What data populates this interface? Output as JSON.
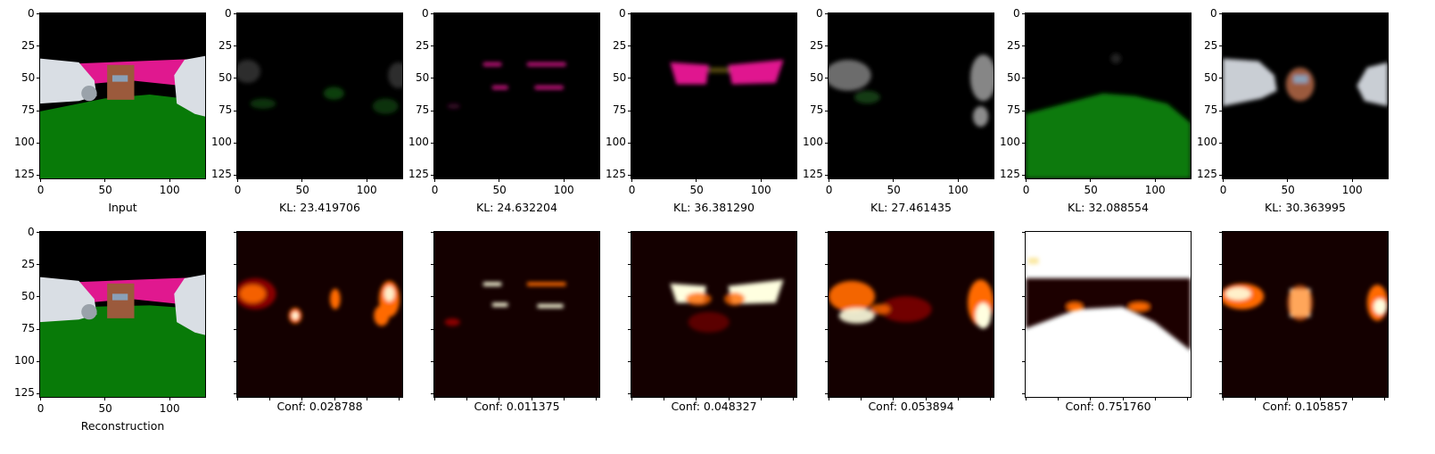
{
  "axis": {
    "y_ticks": [
      "0",
      "25",
      "50",
      "75",
      "100",
      "125"
    ],
    "x_ticks": [
      "0",
      "50",
      "100"
    ],
    "range": [
      0,
      128
    ]
  },
  "top_row": [
    {
      "caption": "Input",
      "kind": "input"
    },
    {
      "caption": "KL: 23.419706",
      "kind": "latent1"
    },
    {
      "caption": "KL: 24.632204",
      "kind": "latent2"
    },
    {
      "caption": "KL: 36.381290",
      "kind": "latent3"
    },
    {
      "caption": "KL: 27.461435",
      "kind": "latent4"
    },
    {
      "caption": "KL: 32.088554",
      "kind": "latent5"
    },
    {
      "caption": "KL: 30.363995",
      "kind": "latent6"
    }
  ],
  "bottom_row": [
    {
      "caption": "Reconstruction",
      "kind": "recon"
    },
    {
      "caption": "Conf: 0.028788",
      "kind": "conf1"
    },
    {
      "caption": "Conf: 0.011375",
      "kind": "conf2"
    },
    {
      "caption": "Conf: 0.048327",
      "kind": "conf3"
    },
    {
      "caption": "Conf: 0.053894",
      "kind": "conf4"
    },
    {
      "caption": "Conf: 0.751760",
      "kind": "conf5"
    },
    {
      "caption": "Conf: 0.105857",
      "kind": "conf6"
    }
  ],
  "colors": {
    "sky": "#000000",
    "wall": "#e0188f",
    "ground": "#087a08",
    "car": "#d9dee4",
    "box": "#9b5a3c",
    "heat_hot": "#ffffe0",
    "heat_mid": "#ff6a00",
    "heat_low": "#8a0000",
    "heat_bg": "#140000"
  }
}
